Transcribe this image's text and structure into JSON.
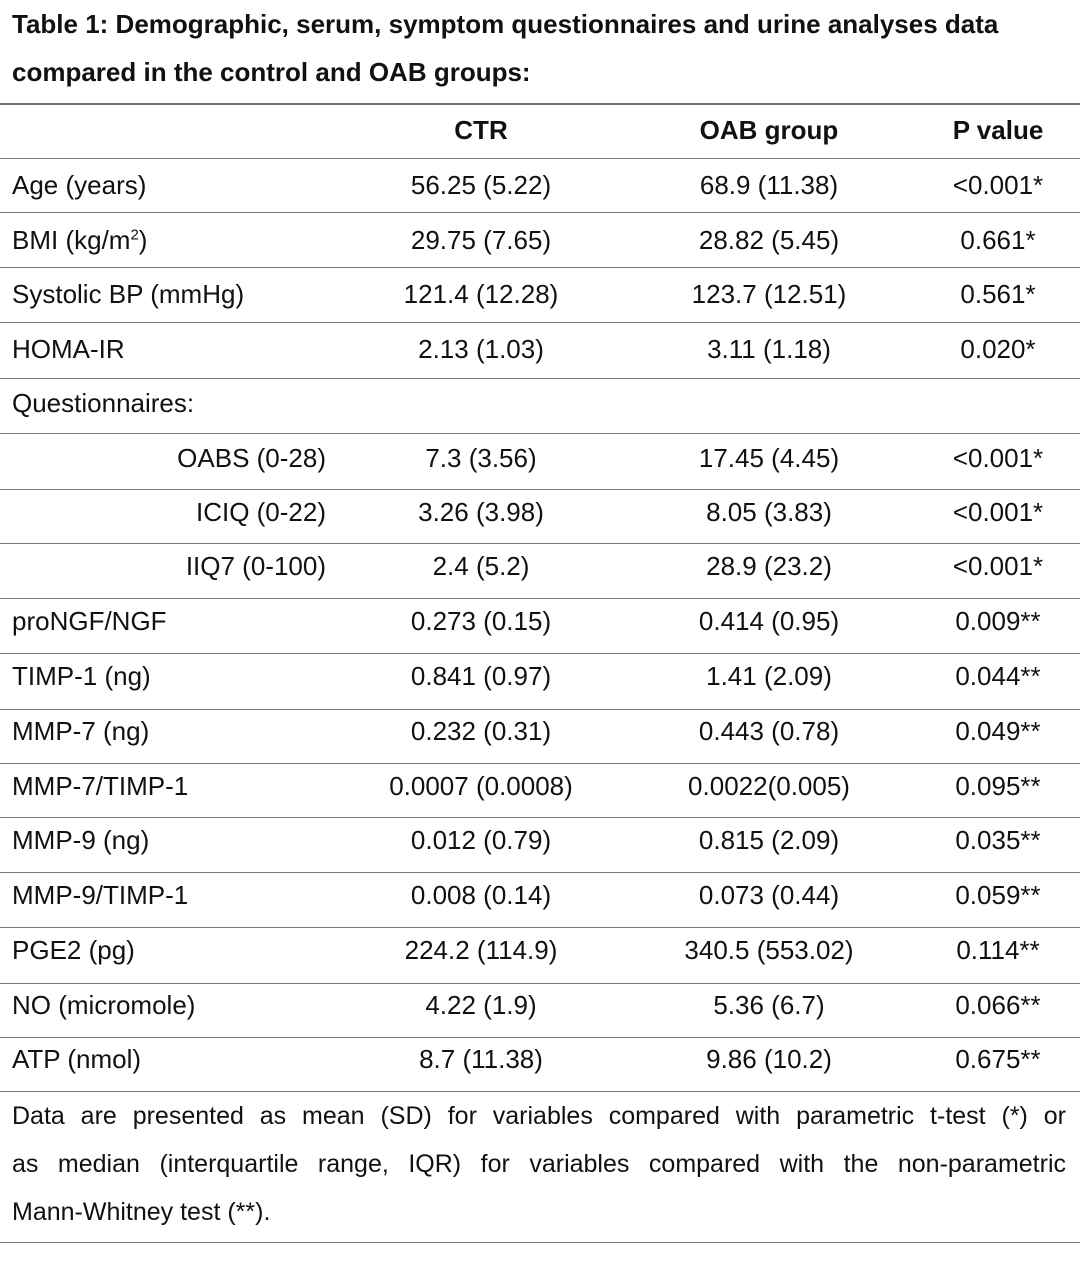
{
  "caption": {
    "line1": "Table 1: Demographic, serum, symptom questionnaires and urine analyses data",
    "line2": "compared in the control and OAB groups:"
  },
  "header": {
    "col_label": "",
    "col_ctr": "CTR",
    "col_oab": "OAB group",
    "col_p": "P value"
  },
  "rows": [
    {
      "label": "Age (years)",
      "ctr": "56.25 (5.22)",
      "oab": "68.9 (11.38)",
      "p": "<0.001*"
    },
    {
      "label": "BMI (kg/m",
      "label_sup": "2",
      "label_suffix": ")",
      "ctr": "29.75 (7.65)",
      "oab": "28.82 (5.45)",
      "p": "0.661*"
    },
    {
      "label": "Systolic BP (mmHg)",
      "ctr": "121.4 (12.28)",
      "oab": "123.7 (12.51)",
      "p": "0.561*"
    },
    {
      "label": "HOMA-IR",
      "ctr": "2.13 (1.03)",
      "oab": "3.11 (1.18)",
      "p": "0.020*"
    },
    {
      "label": "Questionnaires:",
      "ctr": "",
      "oab": "",
      "p": ""
    },
    {
      "label": "OABS (0-28)",
      "ctr": "7.3 (3.56)",
      "oab": "17.45 (4.45)",
      "p": "<0.001*"
    },
    {
      "label": "ICIQ (0-22)",
      "ctr": "3.26 (3.98)",
      "oab": "8.05 (3.83)",
      "p": "<0.001*"
    },
    {
      "label": "IIQ7 (0-100)",
      "ctr": "2.4 (5.2)",
      "oab": "28.9 (23.2)",
      "p": "<0.001*"
    },
    {
      "label": "proNGF/NGF",
      "ctr": "0.273 (0.15)",
      "oab": "0.414 (0.95)",
      "p": "0.009**"
    },
    {
      "label": "TIMP-1 (ng)",
      "ctr": "0.841 (0.97)",
      "oab": "1.41 (2.09)",
      "p": "0.044**"
    },
    {
      "label": "MMP-7 (ng)",
      "ctr": "0.232 (0.31)",
      "oab": "0.443 (0.78)",
      "p": "0.049**"
    },
    {
      "label": "MMP-7/TIMP-1",
      "ctr": "0.0007 (0.0008)",
      "oab": "0.0022(0.005)",
      "p": "0.095**"
    },
    {
      "label": "MMP-9 (ng)",
      "ctr": "0.012 (0.79)",
      "oab": "0.815 (2.09)",
      "p": "0.035**"
    },
    {
      "label": "MMP-9/TIMP-1",
      "ctr": "0.008 (0.14)",
      "oab": "0.073 (0.44)",
      "p": "0.059**"
    },
    {
      "label": "PGE2 (pg)",
      "ctr": "224.2 (114.9)",
      "oab": "340.5 (553.02)",
      "p": "0.114**"
    },
    {
      "label": "NO (micromole)",
      "ctr": "4.22 (1.9)",
      "oab": "5.36 (6.7)",
      "p": "0.066**"
    },
    {
      "label": "ATP (nmol)",
      "ctr": "8.7 (11.38)",
      "oab": "9.86 (10.2)",
      "p": "0.675**"
    }
  ],
  "footnote": {
    "line1": "Data are presented as mean (SD) for variables compared with parametric t-test (*) or",
    "line2": "as median (interquartile range, IQR) for variables compared with the non-parametric",
    "line3": "Mann-Whitney test (**)."
  }
}
